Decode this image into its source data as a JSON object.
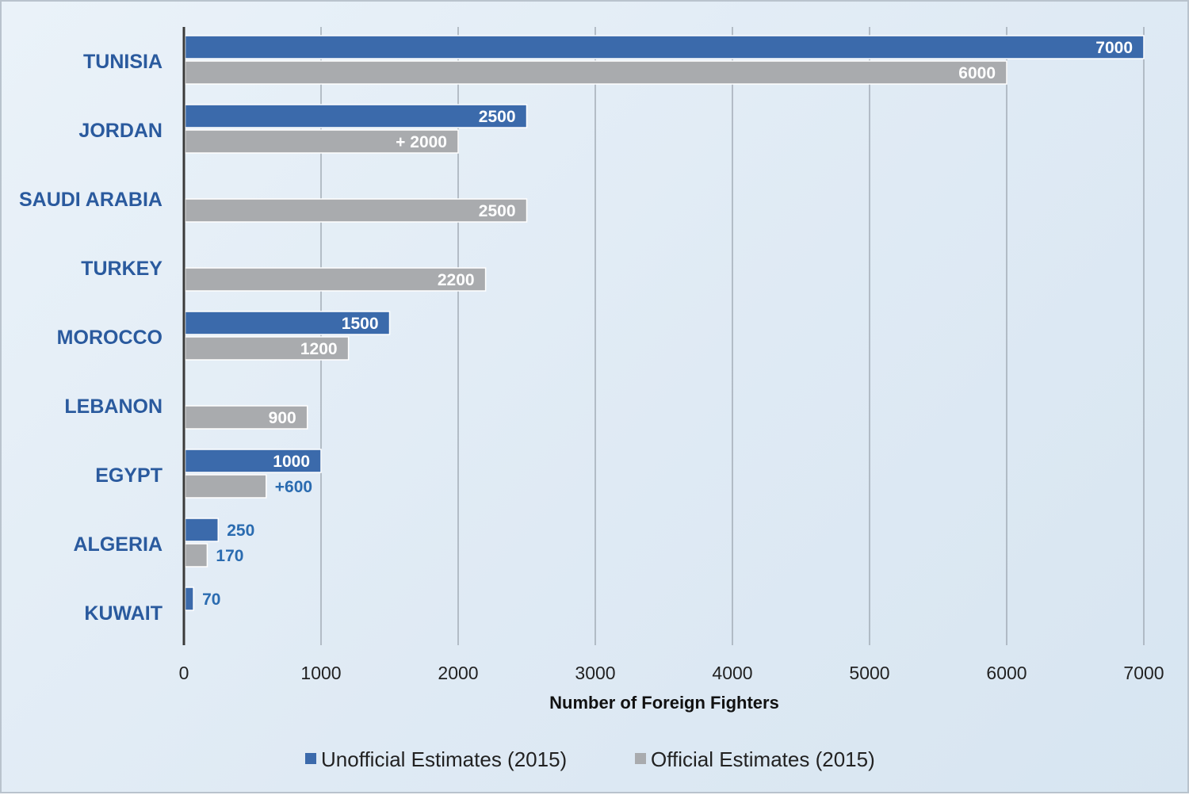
{
  "chart_data": {
    "type": "bar",
    "orientation": "horizontal",
    "title": "",
    "xlabel": "Number of Foreign Fighters",
    "ylabel": "",
    "xlim": [
      0,
      7000
    ],
    "xticks": [
      0,
      1000,
      2000,
      3000,
      4000,
      5000,
      6000,
      7000
    ],
    "grid": "vertical",
    "legend_position": "bottom",
    "categories": [
      "TUNISIA",
      "JORDAN",
      "SAUDI ARABIA",
      "TURKEY",
      "MOROCCO",
      "LEBANON",
      "EGYPT",
      "ALGERIA",
      "KUWAIT"
    ],
    "series": [
      {
        "name": "Unofficial Estimates (2015)",
        "color": "#3b6aab",
        "values": [
          7000,
          2500,
          null,
          null,
          1500,
          null,
          1000,
          250,
          70
        ],
        "labels": [
          "7000",
          "2500",
          "",
          "",
          "1500",
          "",
          "1000",
          "250",
          "70"
        ]
      },
      {
        "name": "Official Estimates (2015)",
        "color": "#a9abae",
        "values": [
          6000,
          2000,
          2500,
          2200,
          1200,
          900,
          600,
          170,
          null
        ],
        "labels": [
          "6000",
          "+ 2000",
          "2500",
          "2200",
          "1200",
          "900",
          "+600",
          "170",
          ""
        ]
      }
    ]
  }
}
